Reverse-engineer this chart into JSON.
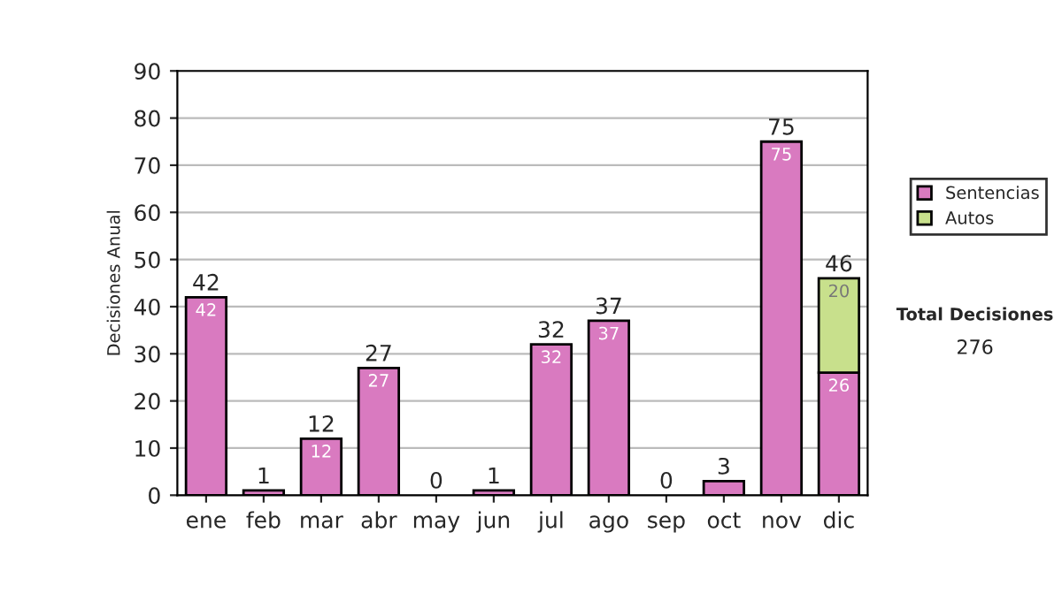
{
  "chart_data": {
    "type": "bar",
    "stacked": true,
    "ylabel": "Decisiones Anual",
    "categories": [
      "ene",
      "feb",
      "mar",
      "abr",
      "may",
      "jun",
      "jul",
      "ago",
      "sep",
      "oct",
      "nov",
      "dic"
    ],
    "series": [
      {
        "name": "Sentencias",
        "color": "#d97ac0",
        "values": [
          42,
          1,
          12,
          27,
          0,
          1,
          32,
          37,
          0,
          3,
          75,
          26
        ],
        "value_labels": [
          "42",
          null,
          "12",
          "27",
          null,
          null,
          "32",
          "37",
          null,
          null,
          "75",
          "26"
        ]
      },
      {
        "name": "Autos",
        "color": "#c8e08c",
        "values": [
          null,
          null,
          null,
          null,
          null,
          null,
          null,
          null,
          null,
          null,
          null,
          20
        ],
        "value_labels": [
          null,
          null,
          null,
          null,
          null,
          null,
          null,
          null,
          null,
          null,
          null,
          "20"
        ]
      }
    ],
    "totals": [
      "42",
      "1",
      "12",
      "27",
      "0",
      "1",
      "32",
      "37",
      "0",
      "3",
      "75",
      "46"
    ],
    "ylim": [
      0,
      90
    ],
    "yticks": [
      0,
      10,
      20,
      30,
      40,
      50,
      60,
      70,
      80,
      90
    ],
    "grid": "y",
    "legend": "right",
    "annotations": [
      "Total Decisiones",
      "276"
    ]
  }
}
